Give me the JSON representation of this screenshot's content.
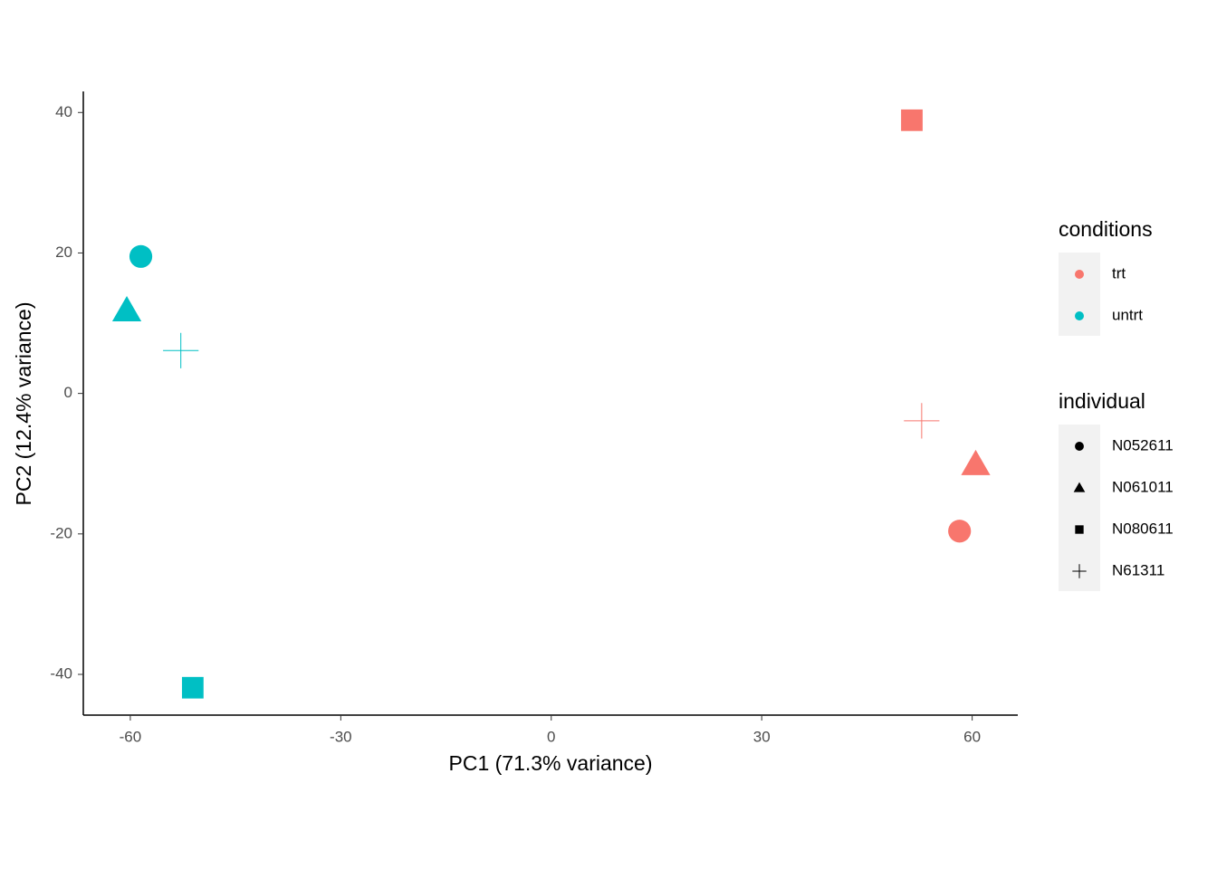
{
  "chart_data": {
    "type": "scatter",
    "x_label": "PC1 (71.3% variance)",
    "y_label": "PC2 (12.4% variance)",
    "xlim": [
      -66.7,
      66.5
    ],
    "xticks": [
      -60,
      -30,
      0,
      30,
      60
    ],
    "ylim": [
      -45.8,
      43
    ],
    "yticks": [
      -40,
      -20,
      0,
      20,
      40
    ],
    "grid": false,
    "color_legend_title": "conditions",
    "series": [
      {
        "name": "trt",
        "color": "#F8766D",
        "x": [
          58.2,
          60.5,
          51.4,
          52.8
        ],
        "y": [
          -19.6,
          -10.1,
          38.9,
          -3.9
        ],
        "shapes": [
          "circle",
          "triangle",
          "square",
          "plus"
        ]
      },
      {
        "name": "untrt",
        "color": "#00BFC4",
        "x": [
          -58.5,
          -60.5,
          -51.1,
          -52.8
        ],
        "y": [
          19.5,
          11.8,
          -41.9,
          6.1
        ],
        "shapes": [
          "circle",
          "triangle",
          "square",
          "plus"
        ]
      }
    ],
    "shape_legend": {
      "title": "individual",
      "items": [
        {
          "name": "N052611",
          "shape": "circle"
        },
        {
          "name": "N061011",
          "shape": "triangle"
        },
        {
          "name": "N080611",
          "shape": "square"
        },
        {
          "name": "N61311",
          "shape": "plus"
        }
      ]
    }
  }
}
